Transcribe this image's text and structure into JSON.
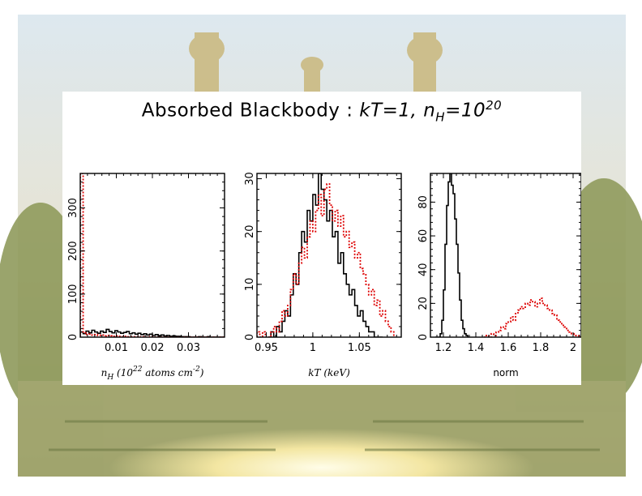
{
  "title": {
    "prefix": "Absorbed Blackbody : ",
    "kt_part": "kT=1, ",
    "nh_var": "n",
    "nh_sub": "H",
    "nh_eq": "=10",
    "nh_exp": "20"
  },
  "colors": {
    "run1": "#000000",
    "run2": "#dd0000"
  },
  "chart_data": [
    {
      "type": "histogram",
      "xlabel": "nH (10^22 atoms cm^-2)",
      "xlabel_parts": {
        "var": "n",
        "sub": "H",
        "pre": "(10",
        "exp": "22",
        "post": "atoms cm",
        "exp2": "-2",
        "end": ")"
      },
      "xlim": [
        0,
        0.04
      ],
      "ylim": [
        0,
        380
      ],
      "xticks": [
        0.01,
        0.02,
        0.03
      ],
      "xtick_labels": [
        "0.01",
        "0.02",
        "0.03"
      ],
      "yticks": [
        0,
        100,
        200,
        300
      ],
      "ytick_labels": [
        "0",
        "100",
        "200",
        "300"
      ],
      "series": [
        {
          "name": "run-black",
          "style": "solid",
          "color": "#000000",
          "x0": 0.0,
          "binwidth": 0.0008,
          "values": [
            12,
            8,
            14,
            10,
            16,
            12,
            9,
            14,
            11,
            18,
            13,
            10,
            15,
            12,
            9,
            11,
            13,
            8,
            10,
            7,
            9,
            6,
            8,
            5,
            7,
            4,
            6,
            3,
            5,
            3,
            4,
            2,
            3,
            2,
            2,
            1,
            1,
            1,
            0,
            0,
            0,
            1,
            0,
            0,
            1,
            0,
            0,
            0,
            0,
            0
          ]
        },
        {
          "name": "run-red",
          "style": "dotted",
          "color": "#dd0000",
          "x0": 0.0,
          "binwidth": 0.0008,
          "values": [
            380,
            10,
            6,
            7,
            5,
            6,
            4,
            5,
            3,
            4,
            3,
            2,
            3,
            2,
            1,
            2,
            1,
            1,
            1,
            1,
            0,
            1,
            0,
            0,
            1,
            0,
            0,
            0,
            0,
            0,
            0,
            0,
            0,
            0,
            0,
            0,
            0,
            0,
            0,
            0,
            0,
            0,
            0,
            0,
            0,
            0,
            0,
            0,
            0,
            0
          ]
        }
      ]
    },
    {
      "type": "histogram",
      "xlabel": "kT (keV)",
      "xlabel_parts": {
        "var": "kT",
        "post": "(keV)"
      },
      "xlim": [
        0.94,
        1.095
      ],
      "ylim": [
        0,
        31
      ],
      "xticks": [
        0.95,
        1.0,
        1.05
      ],
      "xtick_labels": [
        "0.95",
        "1",
        "1.05"
      ],
      "yticks": [
        0,
        10,
        20,
        30
      ],
      "ytick_labels": [
        "0",
        "10",
        "20",
        "30"
      ],
      "series": [
        {
          "name": "run-black",
          "style": "solid",
          "color": "#000000",
          "x0": 0.955,
          "binwidth": 0.003,
          "values": [
            1,
            0,
            2,
            1,
            3,
            5,
            4,
            8,
            12,
            10,
            16,
            20,
            18,
            24,
            22,
            27,
            25,
            31,
            28,
            26,
            22,
            24,
            19,
            20,
            14,
            16,
            12,
            10,
            8,
            9,
            6,
            4,
            5,
            3,
            2,
            1,
            1,
            0,
            0,
            0
          ]
        },
        {
          "name": "run-red",
          "style": "dotted",
          "color": "#dd0000",
          "x0": 0.94,
          "binwidth": 0.003,
          "values": [
            1,
            0,
            1,
            0,
            0,
            1,
            2,
            1,
            3,
            5,
            4,
            6,
            9,
            12,
            10,
            14,
            17,
            15,
            19,
            22,
            20,
            24,
            27,
            23,
            28,
            29,
            25,
            22,
            24,
            21,
            23,
            19,
            20,
            17,
            18,
            15,
            16,
            13,
            12,
            10,
            8,
            9,
            6,
            7,
            4,
            5,
            3,
            2,
            1
          ]
        }
      ]
    },
    {
      "type": "histogram",
      "xlabel": "norm",
      "xlabel_parts": {
        "plain": "norm"
      },
      "xlim": [
        1.12,
        2.05
      ],
      "ylim": [
        0,
        97
      ],
      "xticks": [
        1.2,
        1.4,
        1.6,
        1.8,
        2.0
      ],
      "xtick_labels": [
        "1.2",
        "1.4",
        "1.6",
        "1.8",
        "2"
      ],
      "yticks": [
        0,
        20,
        40,
        60,
        80
      ],
      "ytick_labels": [
        "0",
        "20",
        "40",
        "60",
        "80"
      ],
      "series": [
        {
          "name": "run-black",
          "style": "solid",
          "color": "#000000",
          "x0": 1.15,
          "binwidth": 0.01,
          "values": [
            0,
            0,
            0,
            2,
            10,
            28,
            55,
            78,
            92,
            97,
            90,
            85,
            70,
            55,
            38,
            22,
            10,
            5,
            2,
            1,
            0
          ]
        },
        {
          "name": "run-red",
          "style": "dotted",
          "color": "#dd0000",
          "x0": 1.45,
          "binwidth": 0.015,
          "values": [
            0,
            1,
            0,
            2,
            1,
            3,
            4,
            6,
            5,
            8,
            9,
            12,
            10,
            14,
            16,
            18,
            17,
            20,
            19,
            22,
            21,
            18,
            20,
            23,
            20,
            19,
            17,
            16,
            14,
            13,
            10,
            9,
            7,
            6,
            4,
            3,
            2,
            1,
            1,
            0
          ]
        }
      ]
    }
  ]
}
